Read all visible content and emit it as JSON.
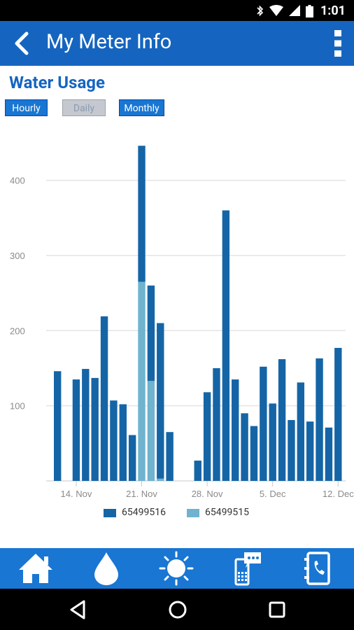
{
  "status_bar": {
    "time": "1:01"
  },
  "app_bar": {
    "title": "My Meter Info"
  },
  "section": {
    "title": "Water Usage"
  },
  "tabs": [
    {
      "label": "Hourly",
      "state": "active"
    },
    {
      "label": "Daily",
      "state": "inactive"
    },
    {
      "label": "Monthly",
      "state": "active"
    }
  ],
  "chart_data": {
    "type": "bar",
    "stacked": true,
    "x_tick_labels": [
      "14. Nov",
      "21. Nov",
      "28. Nov",
      "5. Dec",
      "12. Dec"
    ],
    "y_ticks": [
      100,
      200,
      300,
      400
    ],
    "ylim": [
      0,
      450
    ],
    "grid": true,
    "legend_position": "bottom",
    "categories": [
      "12 Nov",
      "13 Nov",
      "14 Nov",
      "15 Nov",
      "16 Nov",
      "17 Nov",
      "18 Nov",
      "19 Nov",
      "20 Nov",
      "21 Nov",
      "22 Nov",
      "23 Nov",
      "24 Nov",
      "25 Nov",
      "26 Nov",
      "27 Nov",
      "28 Nov",
      "29 Nov",
      "30 Nov",
      "1 Dec",
      "2 Dec",
      "3 Dec",
      "4 Dec",
      "5 Dec",
      "6 Dec",
      "7 Dec",
      "8 Dec",
      "9 Dec",
      "10 Dec",
      "11 Dec",
      "12 Dec",
      "13 Dec"
    ],
    "series": [
      {
        "name": "65499516",
        "color": "#1565a6",
        "values": [
          146,
          0,
          135,
          149,
          137,
          219,
          107,
          102,
          61,
          181,
          127,
          207,
          65,
          0,
          0,
          27,
          118,
          150,
          360,
          135,
          90,
          73,
          152,
          103,
          162,
          81,
          131,
          79,
          163,
          71,
          177,
          0
        ]
      },
      {
        "name": "65499515",
        "color": "#6fb3cf",
        "values": [
          0,
          0,
          0,
          0,
          0,
          0,
          0,
          0,
          0,
          265,
          133,
          3,
          0,
          0,
          0,
          0,
          0,
          0,
          0,
          0,
          0,
          0,
          0,
          0,
          0,
          0,
          0,
          0,
          0,
          0,
          0,
          0
        ]
      }
    ]
  },
  "bottom_nav": [
    {
      "icon": "home-icon"
    },
    {
      "icon": "water-drop-icon"
    },
    {
      "icon": "sun-icon"
    },
    {
      "icon": "chat-phone-icon"
    },
    {
      "icon": "contacts-icon"
    }
  ]
}
